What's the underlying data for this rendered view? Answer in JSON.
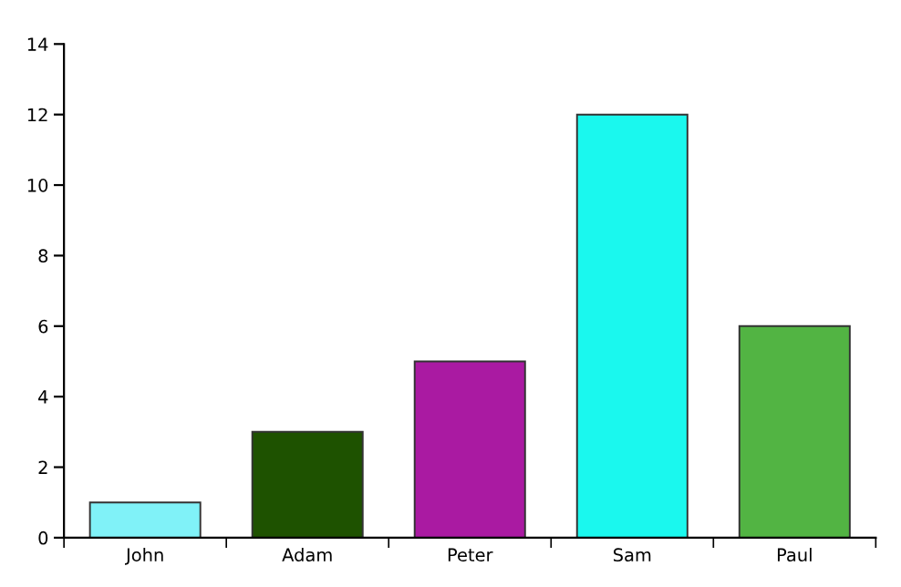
{
  "chart_data": {
    "type": "bar",
    "categories": [
      "John",
      "Adam",
      "Peter",
      "Sam",
      "Paul"
    ],
    "values": [
      1,
      3,
      5,
      12,
      6
    ],
    "colors": [
      "#80f2f8",
      "#1e5200",
      "#aa1aa2",
      "#1af8ee",
      "#52b443"
    ],
    "ylim": [
      0,
      14
    ],
    "yticks": [
      0,
      2,
      4,
      6,
      8,
      10,
      12,
      14
    ],
    "grid": false,
    "legend": false
  }
}
